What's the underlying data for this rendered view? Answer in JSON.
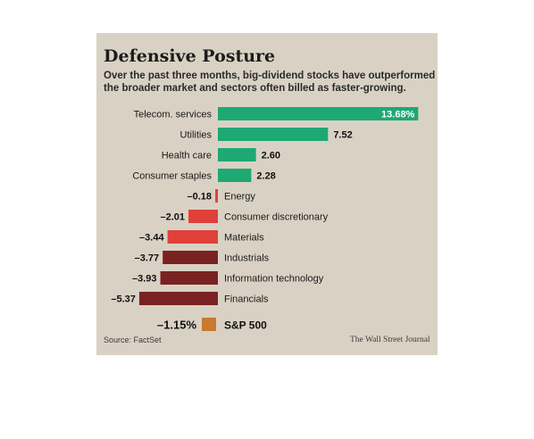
{
  "title": "Defensive Posture",
  "subtitle": "Over the past three months, big-dividend stocks have outperformed the broader market and sectors often billed as faster-growing.",
  "source": "Source: FactSet",
  "publisher": "The Wall Street Journal",
  "colors": {
    "background": "#d9d2c4",
    "positive": "#1ea874",
    "negative": "#7a2222",
    "negative_light": "#e0403a",
    "reference": "#c87a2e"
  },
  "chart_data": {
    "type": "bar",
    "orientation": "horizontal",
    "title": "Defensive Posture",
    "xlabel": "",
    "ylabel": "",
    "unit": "%",
    "xlim": [
      -5.37,
      13.68
    ],
    "grid": false,
    "categories": [
      "Telecom. services",
      "Utilities",
      "Health care",
      "Consumer staples",
      "Energy",
      "Consumer discretionary",
      "Materials",
      "Industrials",
      "Information technology",
      "Financials"
    ],
    "values": [
      13.68,
      7.52,
      2.6,
      2.28,
      -0.18,
      -2.01,
      -3.44,
      -3.77,
      -3.93,
      -5.37
    ],
    "labels": [
      "13.68%",
      "7.52",
      "2.60",
      "2.28",
      "–0.18",
      "–2.01",
      "–3.44",
      "–3.77",
      "–3.93",
      "–5.37"
    ],
    "reference": {
      "category": "S&P 500",
      "value": -1.15,
      "label": "–1.15%"
    }
  }
}
